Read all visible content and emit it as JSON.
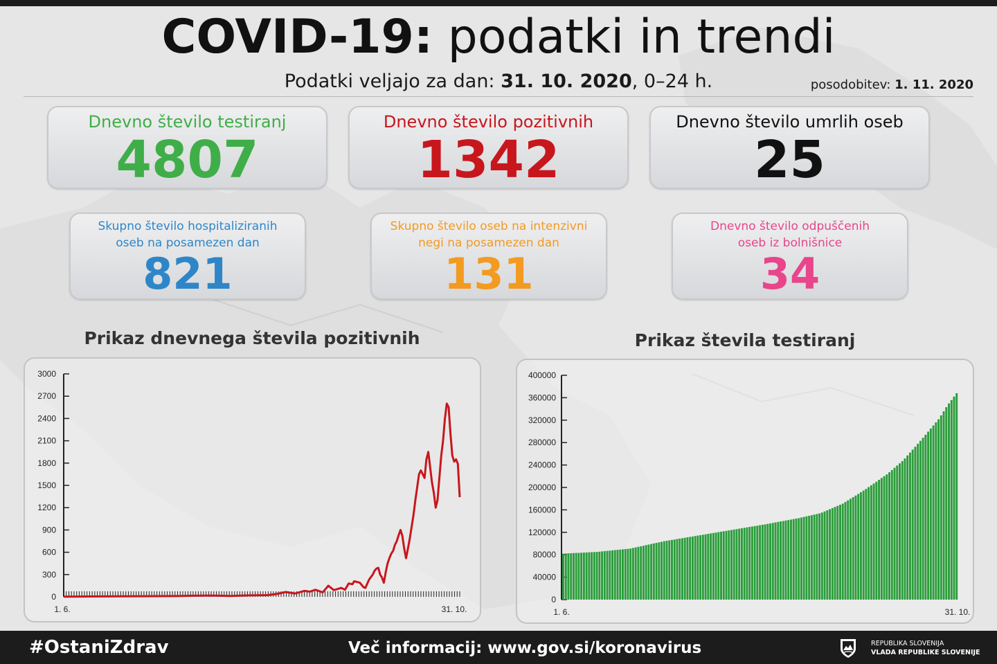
{
  "header": {
    "title_bold": "COVID-19:",
    "title_rest": "podatki in trendi",
    "subtitle_prefix": "Podatki veljajo za dan:",
    "subtitle_date": "31. 10. 2020",
    "subtitle_suffix": ", 0–24 h.",
    "update_label": "posodobitev:",
    "update_date": "1. 11. 2020"
  },
  "stats": [
    {
      "label": "Dnevno število testiranj",
      "value": "4807",
      "color": "#3fae49"
    },
    {
      "label": "Dnevno število pozitivnih",
      "value": "1342",
      "color": "#c8161d"
    },
    {
      "label": "Dnevno število umrlih oseb",
      "value": "25",
      "color": "#111111"
    },
    {
      "label1": "Skupno število hospitaliziranih",
      "label2": "oseb na posamezen dan",
      "value": "821",
      "color": "#2e86c8"
    },
    {
      "label1": "Skupno število oseb na intenzivni",
      "label2": "negi na posamezen dan",
      "value": "131",
      "color": "#f39a21"
    },
    {
      "label1": "Dnevno število odpuščenih",
      "label2": "oseb iz bolnišnice",
      "value": "34",
      "color": "#e8458b"
    }
  ],
  "chart_data": [
    {
      "type": "line",
      "title": "Prikaz dnevnega števila pozitivnih",
      "x_start": "1. 6.",
      "x_end": "31. 10.",
      "ylim": [
        0,
        3000
      ],
      "y_ticks": [
        "0",
        "300",
        "600",
        "900",
        "1200",
        "1500",
        "1800",
        "2100",
        "2400",
        "2700",
        "3000"
      ],
      "color": "#c8161d",
      "points": [
        [
          0,
          2
        ],
        [
          20,
          6
        ],
        [
          40,
          8
        ],
        [
          60,
          10
        ],
        [
          70,
          15
        ],
        [
          80,
          18
        ],
        [
          90,
          12
        ],
        [
          100,
          20
        ],
        [
          110,
          22
        ],
        [
          115,
          38
        ],
        [
          120,
          65
        ],
        [
          125,
          45
        ],
        [
          130,
          80
        ],
        [
          133,
          70
        ],
        [
          136,
          95
        ],
        [
          140,
          60
        ],
        [
          143,
          150
        ],
        [
          146,
          90
        ],
        [
          150,
          120
        ],
        [
          152,
          95
        ],
        [
          154,
          180
        ],
        [
          156,
          170
        ],
        [
          157,
          210
        ],
        [
          160,
          190
        ],
        [
          162,
          130
        ],
        [
          163,
          120
        ],
        [
          165,
          230
        ],
        [
          167,
          300
        ],
        [
          168,
          350
        ],
        [
          169,
          380
        ],
        [
          170,
          390
        ],
        [
          171,
          300
        ],
        [
          172,
          260
        ],
        [
          173,
          190
        ],
        [
          174,
          330
        ],
        [
          175,
          450
        ],
        [
          176,
          520
        ],
        [
          177,
          580
        ],
        [
          178,
          620
        ],
        [
          179,
          700
        ],
        [
          180,
          750
        ],
        [
          181,
          830
        ],
        [
          182,
          900
        ],
        [
          183,
          820
        ],
        [
          184,
          650
        ],
        [
          185,
          520
        ],
        [
          186,
          650
        ],
        [
          187,
          780
        ],
        [
          188,
          940
        ],
        [
          189,
          1100
        ],
        [
          190,
          1300
        ],
        [
          191,
          1470
        ],
        [
          192,
          1650
        ],
        [
          193,
          1700
        ],
        [
          194,
          1650
        ],
        [
          195,
          1600
        ],
        [
          196,
          1850
        ],
        [
          197,
          1950
        ],
        [
          198,
          1750
        ],
        [
          199,
          1540
        ],
        [
          200,
          1400
        ],
        [
          201,
          1200
        ],
        [
          202,
          1300
        ],
        [
          203,
          1600
        ],
        [
          204,
          1900
        ],
        [
          205,
          2100
        ],
        [
          206,
          2400
        ],
        [
          207,
          2600
        ],
        [
          208,
          2550
        ],
        [
          209,
          2200
        ],
        [
          210,
          1900
        ],
        [
          211,
          1820
        ],
        [
          212,
          1850
        ],
        [
          213,
          1790
        ],
        [
          214,
          1342
        ]
      ],
      "x_max": 214
    },
    {
      "type": "bar",
      "title": "Prikaz števila testiranj",
      "x_start": "1. 6.",
      "x_end": "31. 10.",
      "ylim": [
        0,
        400000
      ],
      "y_ticks": [
        "0",
        "40000",
        "80000",
        "120000",
        "160000",
        "200000",
        "240000",
        "280000",
        "320000",
        "360000",
        "400000"
      ],
      "color": "#2a9d3a",
      "bar_count": 153,
      "values_sampled": [
        [
          0,
          82000
        ],
        [
          15,
          85000
        ],
        [
          30,
          91000
        ],
        [
          45,
          104000
        ],
        [
          60,
          114000
        ],
        [
          75,
          124000
        ],
        [
          90,
          134000
        ],
        [
          105,
          145000
        ],
        [
          115,
          154000
        ],
        [
          125,
          171000
        ],
        [
          135,
          196000
        ],
        [
          145,
          224000
        ],
        [
          152,
          248000
        ],
        [
          160,
          284000
        ],
        [
          168,
          322000
        ],
        [
          172,
          347000
        ],
        [
          176,
          368000
        ]
      ],
      "x_max": 176
    }
  ],
  "footer": {
    "hashtag": "#OstaniZdrav",
    "info": "Več informacij: www.gov.si/koronavirus",
    "gov_line1": "REPUBLIKA SLOVENIJA",
    "gov_line2": "VLADA REPUBLIKE SLOVENIJE"
  }
}
